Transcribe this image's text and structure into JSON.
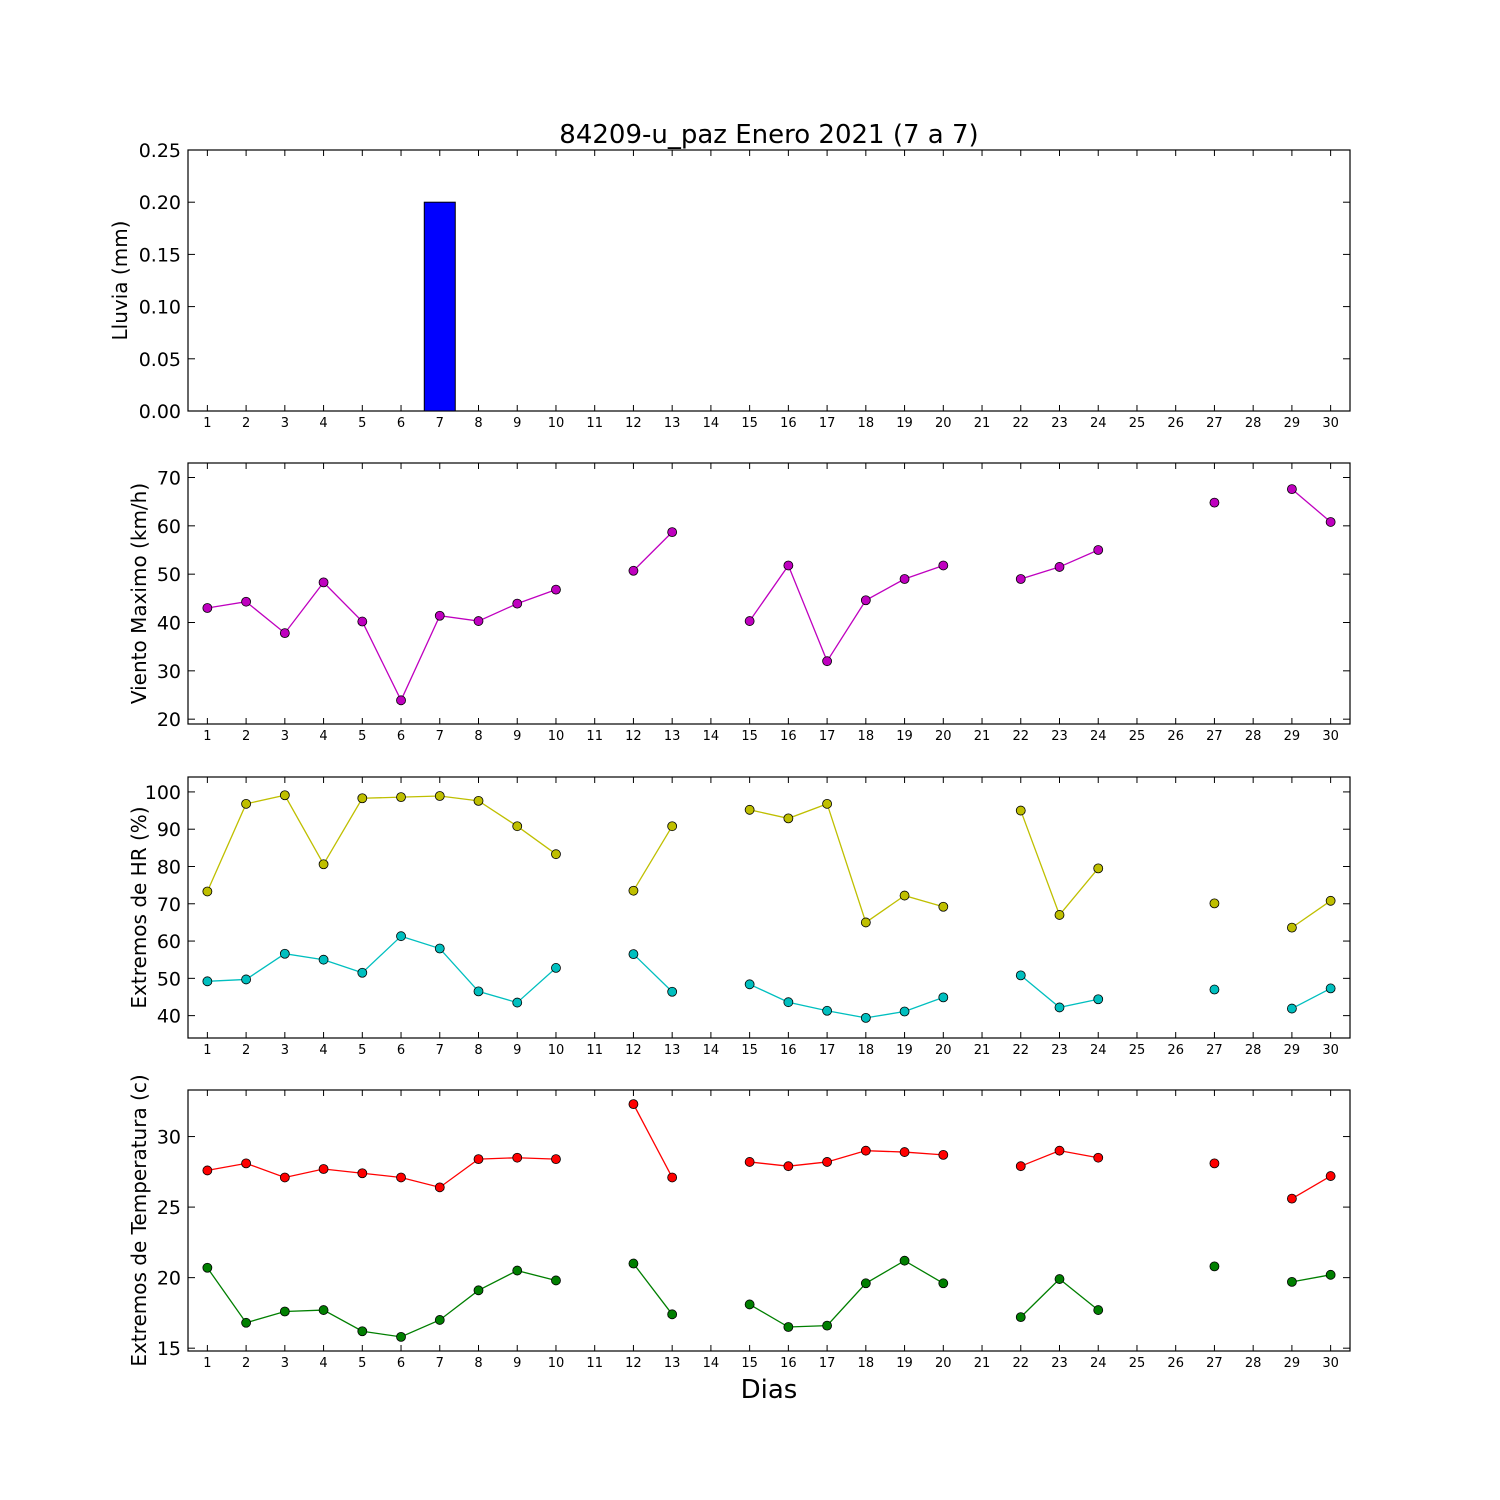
{
  "title": "84209-u_paz Enero 2021  (7 a 7)",
  "xlabel": "Dias",
  "chart_data": [
    {
      "type": "bar",
      "ylabel": "Lluvia (mm)",
      "x": [
        1,
        2,
        3,
        4,
        5,
        6,
        7,
        8,
        9,
        10,
        11,
        12,
        13,
        14,
        15,
        16,
        17,
        18,
        19,
        20,
        21,
        22,
        23,
        24,
        25,
        26,
        27,
        28,
        29,
        30
      ],
      "xticks": [
        1,
        2,
        3,
        4,
        5,
        6,
        7,
        8,
        9,
        10,
        11,
        12,
        13,
        14,
        15,
        16,
        17,
        18,
        19,
        20,
        21,
        22,
        23,
        24,
        25,
        26,
        27,
        28,
        29,
        30
      ],
      "ylim": [
        0,
        0.25
      ],
      "yticks": [
        "0.00",
        "0.05",
        "0.10",
        "0.15",
        "0.20",
        "0.25"
      ],
      "series": [
        {
          "color": "#0000ff",
          "values": [
            0,
            0,
            0,
            0,
            0,
            0,
            0.2,
            0,
            0,
            0,
            0,
            0,
            0,
            0,
            0,
            0,
            0,
            0,
            0,
            0,
            0,
            0,
            0,
            0,
            0,
            0,
            0,
            0,
            0,
            0
          ]
        }
      ]
    },
    {
      "type": "line",
      "ylabel": "Viento Maximo (km/h)",
      "x": [
        1,
        2,
        3,
        4,
        5,
        6,
        7,
        8,
        9,
        10,
        11,
        12,
        13,
        14,
        15,
        16,
        17,
        18,
        19,
        20,
        21,
        22,
        23,
        24,
        25,
        26,
        27,
        28,
        29,
        30
      ],
      "xticks": [
        1,
        2,
        3,
        4,
        5,
        6,
        7,
        8,
        9,
        10,
        11,
        12,
        13,
        14,
        15,
        16,
        17,
        18,
        19,
        20,
        21,
        22,
        23,
        24,
        25,
        26,
        27,
        28,
        29,
        30
      ],
      "ylim": [
        19,
        73
      ],
      "yticks": [
        "20",
        "30",
        "40",
        "50",
        "60",
        "70"
      ],
      "series": [
        {
          "color": "#bf00bf",
          "values": [
            43,
            44.3,
            37.8,
            48.3,
            40.2,
            23.9,
            41.4,
            40.3,
            43.9,
            46.8,
            null,
            50.7,
            58.7,
            null,
            40.3,
            51.8,
            32,
            44.6,
            49,
            51.8,
            null,
            49,
            51.5,
            55,
            null,
            null,
            64.8,
            null,
            67.6,
            60.8
          ]
        }
      ]
    },
    {
      "type": "line",
      "ylabel": "Extremos de HR (%)",
      "x": [
        1,
        2,
        3,
        4,
        5,
        6,
        7,
        8,
        9,
        10,
        11,
        12,
        13,
        14,
        15,
        16,
        17,
        18,
        19,
        20,
        21,
        22,
        23,
        24,
        25,
        26,
        27,
        28,
        29,
        30
      ],
      "xticks": [
        1,
        2,
        3,
        4,
        5,
        6,
        7,
        8,
        9,
        10,
        11,
        12,
        13,
        14,
        15,
        16,
        17,
        18,
        19,
        20,
        21,
        22,
        23,
        24,
        25,
        26,
        27,
        28,
        29,
        30
      ],
      "ylim": [
        34,
        104
      ],
      "yticks": [
        "40",
        "50",
        "60",
        "70",
        "80",
        "90",
        "100"
      ],
      "series": [
        {
          "color": "#bfbf00",
          "values": [
            73.3,
            96.8,
            99.1,
            80.6,
            98.3,
            98.6,
            98.9,
            97.6,
            90.8,
            83.3,
            null,
            73.5,
            90.8,
            null,
            95.2,
            92.9,
            96.8,
            65,
            72.2,
            69.2,
            null,
            95,
            67,
            79.5,
            null,
            null,
            70.1,
            null,
            63.6,
            70.8
          ]
        },
        {
          "color": "#00bfbf",
          "values": [
            49.2,
            49.7,
            56.6,
            55,
            51.5,
            61.3,
            58,
            46.5,
            43.5,
            52.8,
            null,
            56.5,
            46.4,
            null,
            48.4,
            43.6,
            41.3,
            39.4,
            41.1,
            44.9,
            null,
            50.8,
            42.2,
            44.4,
            null,
            null,
            47,
            null,
            41.9,
            47.3
          ]
        }
      ]
    },
    {
      "type": "line",
      "ylabel": "Extremos de Temperatura (c)",
      "x": [
        1,
        2,
        3,
        4,
        5,
        6,
        7,
        8,
        9,
        10,
        11,
        12,
        13,
        14,
        15,
        16,
        17,
        18,
        19,
        20,
        21,
        22,
        23,
        24,
        25,
        26,
        27,
        28,
        29,
        30
      ],
      "xticks": [
        1,
        2,
        3,
        4,
        5,
        6,
        7,
        8,
        9,
        10,
        11,
        12,
        13,
        14,
        15,
        16,
        17,
        18,
        19,
        20,
        21,
        22,
        23,
        24,
        25,
        26,
        27,
        28,
        29,
        30
      ],
      "ylim": [
        14.8,
        33.3
      ],
      "yticks": [
        "15",
        "20",
        "25",
        "30"
      ],
      "series": [
        {
          "color": "#ff0000",
          "values": [
            27.6,
            28.1,
            27.1,
            27.7,
            27.4,
            27.1,
            26.4,
            28.4,
            28.5,
            28.4,
            null,
            32.3,
            27.1,
            null,
            28.2,
            27.9,
            28.2,
            29,
            28.9,
            28.7,
            null,
            27.9,
            29,
            28.5,
            null,
            null,
            28.1,
            null,
            25.6,
            27.2
          ]
        },
        {
          "color": "#007f00",
          "values": [
            20.7,
            16.8,
            17.6,
            17.7,
            16.2,
            15.8,
            17,
            19.1,
            20.5,
            19.8,
            null,
            21,
            17.4,
            null,
            18.1,
            16.5,
            16.6,
            19.6,
            21.2,
            19.6,
            null,
            17.2,
            19.9,
            17.7,
            null,
            null,
            20.8,
            null,
            19.7,
            20.2
          ]
        }
      ]
    }
  ]
}
